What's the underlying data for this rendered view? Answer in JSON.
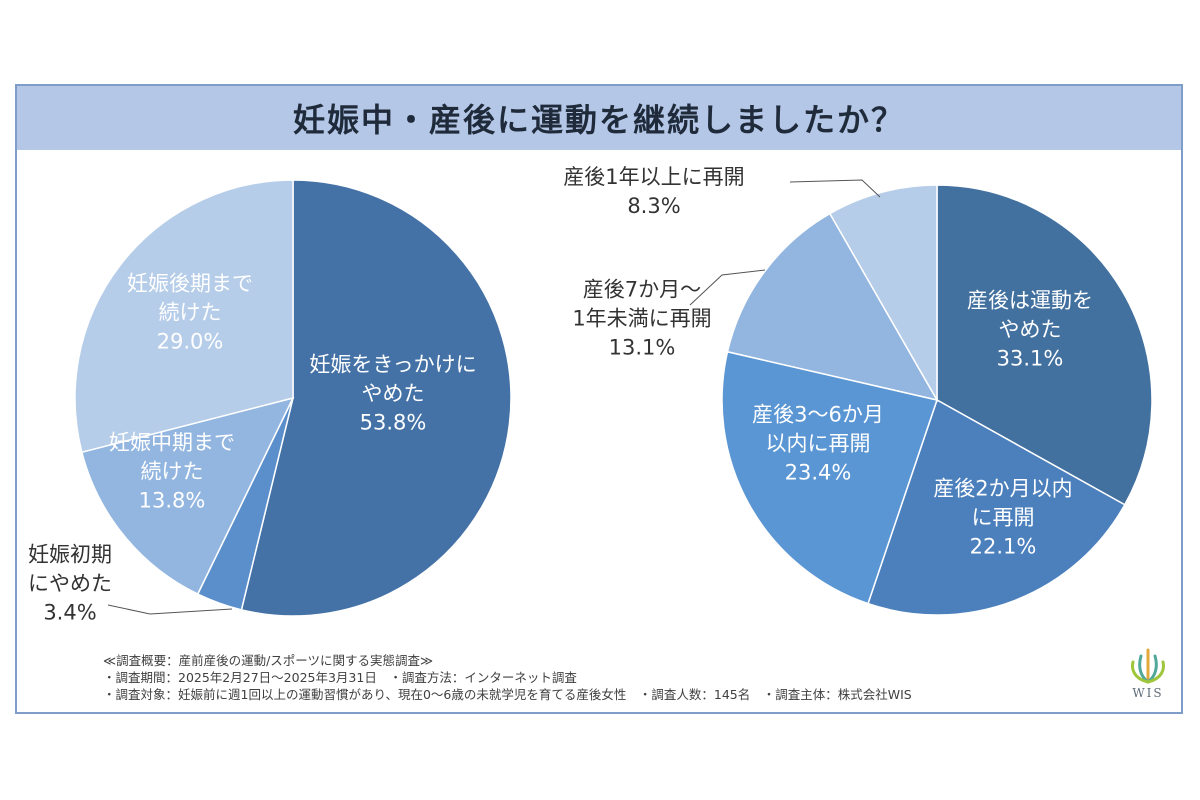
{
  "title": "妊娠中・産後に運動を継続しましたか？",
  "chart_data": [
    {
      "type": "pie",
      "slices": [
        {
          "label": [
            "妊娠をきっかけに",
            "やめた"
          ],
          "value": 53.8,
          "value_label": "53.8%",
          "color": "#4472a6"
        },
        {
          "label": [
            "妊娠初期",
            "にやめた"
          ],
          "value": 3.4,
          "value_label": "3.4%",
          "color": "#5b8fcc"
        },
        {
          "label": [
            "妊娠中期まで",
            "続けた"
          ],
          "value": 13.8,
          "value_label": "13.8%",
          "color": "#93b6e0"
        },
        {
          "label": [
            "妊娠後期まで",
            "続けた"
          ],
          "value": 29.0,
          "value_label": "29.0%",
          "color": "#b6cde9"
        }
      ]
    },
    {
      "type": "pie",
      "slices": [
        {
          "label": [
            "産後は運動を",
            "やめた"
          ],
          "value": 33.1,
          "value_label": "33.1%",
          "color": "#42709f"
        },
        {
          "label": [
            "産後2か月以内",
            "に再開"
          ],
          "value": 22.1,
          "value_label": "22.1%",
          "color": "#4c80bd"
        },
        {
          "label": [
            "産後3〜6か月",
            "以内に再開"
          ],
          "value": 23.4,
          "value_label": "23.4%",
          "color": "#5b96d4"
        },
        {
          "label": [
            "産後7か月〜",
            "1年未満に再開"
          ],
          "value": 13.1,
          "value_label": "13.1%",
          "color": "#93b6e0"
        },
        {
          "label": [
            "産後1年以上に再開"
          ],
          "value": 8.3,
          "value_label": "8.3%",
          "color": "#b6cde9"
        }
      ]
    }
  ],
  "notes": [
    "≪調査概要：産前産後の運動/スポーツに関する実態調査≫",
    "・調査期間：2025年2月27日〜2025年3月31日　・調査方法：インターネット調査",
    "・調査対象：妊娠前に週1回以上の運動習慣があり、現在0〜6歳の未就学児を育てる産後女性　・調査人数：145名　・調査主体：株式会社WIS"
  ],
  "logo": {
    "text": "WIS",
    "icon": "wis-leaf-logo-icon"
  }
}
